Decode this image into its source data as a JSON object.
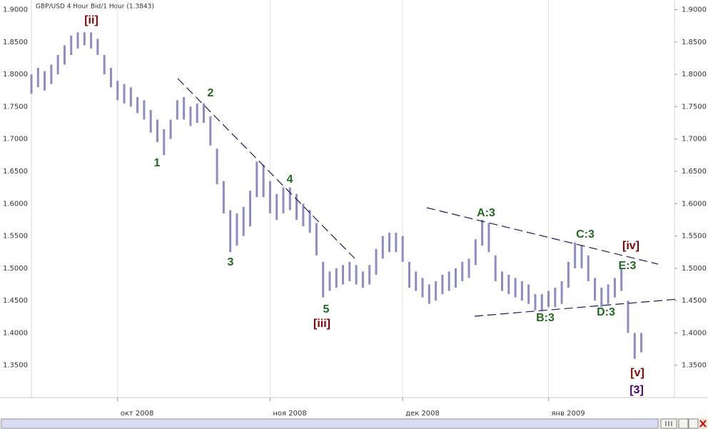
{
  "chart_data": {
    "type": "range-bar",
    "title": "GBP/USD 4 Hour Bid/1 Hour (1.3843)",
    "color": "#8b8bc8",
    "x": [
      0,
      1,
      2,
      3,
      4,
      5,
      6,
      7,
      8,
      9,
      10,
      11,
      12,
      13,
      14,
      15,
      16,
      17,
      18,
      19,
      20,
      21,
      22,
      23,
      24,
      25,
      26,
      27,
      28,
      29,
      30,
      31,
      32,
      33,
      34,
      35,
      36,
      37,
      38,
      39,
      40,
      41,
      42,
      43,
      44,
      45,
      46,
      47,
      48,
      49,
      50,
      51,
      52,
      53,
      54,
      55,
      56,
      57,
      58,
      59,
      60,
      61,
      62,
      63,
      64,
      65,
      66,
      67,
      68,
      69,
      70,
      71,
      72,
      73,
      74,
      75,
      76,
      77,
      78,
      79,
      80,
      81,
      82,
      83,
      84,
      85,
      86,
      87,
      88,
      89,
      90,
      91,
      92
    ],
    "low": [
      1.77,
      1.78,
      1.775,
      1.785,
      1.8,
      1.815,
      1.83,
      1.84,
      1.845,
      1.84,
      1.83,
      1.8,
      1.78,
      1.76,
      1.755,
      1.75,
      1.74,
      1.73,
      1.71,
      1.695,
      1.675,
      1.7,
      1.73,
      1.73,
      1.72,
      1.725,
      1.725,
      1.69,
      1.63,
      1.585,
      1.525,
      1.535,
      1.55,
      1.565,
      1.61,
      1.61,
      1.585,
      1.575,
      1.585,
      1.59,
      1.575,
      1.565,
      1.555,
      1.52,
      1.455,
      1.465,
      1.47,
      1.475,
      1.48,
      1.475,
      1.47,
      1.475,
      1.49,
      1.515,
      1.525,
      1.525,
      1.51,
      1.47,
      1.465,
      1.455,
      1.445,
      1.45,
      1.46,
      1.465,
      1.47,
      1.48,
      1.485,
      1.505,
      1.535,
      1.525,
      1.48,
      1.465,
      1.46,
      1.455,
      1.45,
      1.445,
      1.435,
      1.435,
      1.44,
      1.44,
      1.445,
      1.47,
      1.5,
      1.5,
      1.48,
      1.45,
      1.44,
      1.445,
      1.455,
      1.465,
      1.4,
      1.36,
      1.37
    ],
    "high": [
      1.8,
      1.81,
      1.805,
      1.815,
      1.83,
      1.845,
      1.86,
      1.865,
      1.865,
      1.865,
      1.855,
      1.83,
      1.81,
      1.79,
      1.785,
      1.78,
      1.765,
      1.76,
      1.745,
      1.73,
      1.715,
      1.73,
      1.76,
      1.765,
      1.75,
      1.755,
      1.755,
      1.735,
      1.685,
      1.635,
      1.59,
      1.585,
      1.595,
      1.62,
      1.665,
      1.66,
      1.635,
      1.615,
      1.625,
      1.625,
      1.615,
      1.6,
      1.59,
      1.57,
      1.51,
      1.495,
      1.5,
      1.505,
      1.51,
      1.505,
      1.495,
      1.505,
      1.53,
      1.55,
      1.555,
      1.555,
      1.55,
      1.51,
      1.495,
      1.485,
      1.475,
      1.48,
      1.49,
      1.495,
      1.5,
      1.51,
      1.515,
      1.545,
      1.575,
      1.57,
      1.52,
      1.495,
      1.49,
      1.485,
      1.48,
      1.475,
      1.46,
      1.46,
      1.465,
      1.47,
      1.48,
      1.51,
      1.54,
      1.535,
      1.52,
      1.485,
      1.47,
      1.475,
      1.485,
      1.5,
      1.45,
      1.4,
      1.4
    ],
    "xlim": [
      0,
      97
    ],
    "xticks": [
      {
        "value": 13,
        "label": "окт 2008"
      },
      {
        "value": 36,
        "label": "ноя 2008"
      },
      {
        "value": 56,
        "label": "дек 2008"
      },
      {
        "value": 78,
        "label": "янв 2009"
      }
    ],
    "ylim": [
      1.3,
      1.915
    ],
    "yticks": [
      {
        "value": 1.35,
        "label": "1.3500"
      },
      {
        "value": 1.4,
        "label": "1.4000"
      },
      {
        "value": 1.45,
        "label": "1.4500"
      },
      {
        "value": 1.5,
        "label": "1.5000"
      },
      {
        "value": 1.55,
        "label": "1.5500"
      },
      {
        "value": 1.6,
        "label": "1.6000"
      },
      {
        "value": 1.65,
        "label": "1.6500"
      },
      {
        "value": 1.7,
        "label": "1.7000"
      },
      {
        "value": 1.75,
        "label": "1.7500"
      },
      {
        "value": 1.8,
        "label": "1.8000"
      },
      {
        "value": 1.85,
        "label": "1.8500"
      },
      {
        "value": 1.9,
        "label": "1.9000"
      }
    ],
    "grid": true,
    "annotations": [
      {
        "text": "[ii]",
        "color": "#8b0000"
      },
      {
        "text": "1",
        "color": "#1e6b1e"
      },
      {
        "text": "2",
        "color": "#1e6b1e"
      },
      {
        "text": "3",
        "color": "#1e6b1e"
      },
      {
        "text": "4",
        "color": "#1e6b1e"
      },
      {
        "text": "5",
        "color": "#1e6b1e"
      },
      {
        "text": "[iii]",
        "color": "#8b0000"
      },
      {
        "text": "A:3",
        "color": "#1e6b1e"
      },
      {
        "text": "B:3",
        "color": "#1e6b1e"
      },
      {
        "text": "C:3",
        "color": "#1e6b1e"
      },
      {
        "text": "D:3",
        "color": "#1e6b1e"
      },
      {
        "text": "E:3",
        "color": "#1e6b1e"
      },
      {
        "text": "[iv]",
        "color": "#8b0000"
      },
      {
        "text": "[v]",
        "color": "#8b0000"
      },
      {
        "text": "[3]",
        "color": "#4b0082"
      }
    ]
  }
}
